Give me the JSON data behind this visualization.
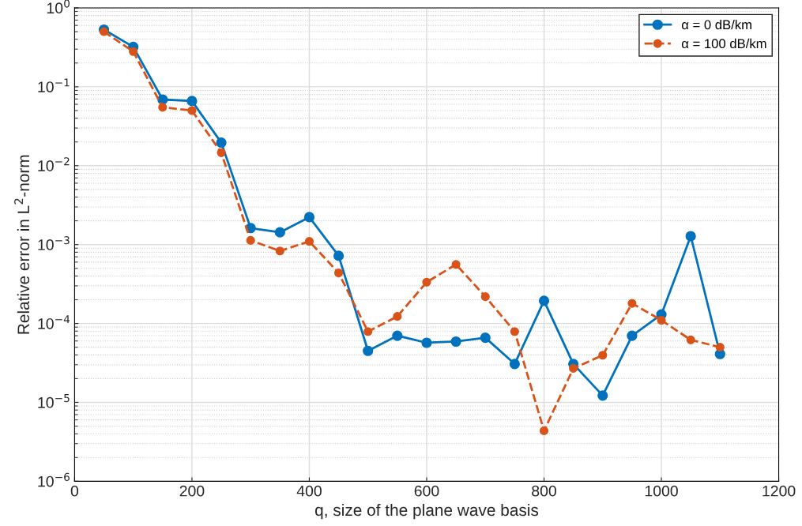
{
  "chart_data": {
    "type": "line",
    "xlabel": "q, size of the plane wave basis",
    "ylabel": "Relative error in L$^{2}$-norm",
    "x": [
      50,
      100,
      150,
      200,
      250,
      300,
      350,
      400,
      450,
      500,
      550,
      600,
      650,
      700,
      750,
      800,
      850,
      900,
      950,
      1000,
      1050,
      1100
    ],
    "series": [
      {
        "name": "α = 0 dB/km",
        "color": "#0072bd",
        "line_style": "solid",
        "values": [
          0.53,
          0.32,
          0.069,
          0.066,
          0.0196,
          0.00162,
          0.00143,
          0.00223,
          0.00072,
          4.5e-05,
          7e-05,
          5.7e-05,
          5.9e-05,
          6.6e-05,
          3.07e-05,
          0.000194,
          3.07e-05,
          1.22e-05,
          7e-05,
          0.00013,
          0.00128,
          4.1e-05
        ]
      },
      {
        "name": "α = 100 dB/km",
        "color": "#d95319",
        "line_style": "dashed",
        "values": [
          0.5,
          0.28,
          0.055,
          0.05,
          0.0146,
          0.00113,
          0.00083,
          0.0011,
          0.000437,
          7.9e-05,
          0.000123,
          0.000334,
          0.00056,
          0.000219,
          7.9e-05,
          4.37e-06,
          2.7e-05,
          3.96e-05,
          0.00018,
          0.00011,
          6.2e-05,
          5e-05
        ]
      }
    ],
    "log": "y",
    "xlim": [
      0,
      1200
    ],
    "xticks": [
      0,
      200,
      400,
      600,
      800,
      1000,
      1200
    ],
    "ylim": [
      1e-06,
      1
    ],
    "yticks": [
      {
        "value": 1e-06,
        "label": "10$^{−6}$"
      },
      {
        "value": 1e-05,
        "label": "10$^{−5}$"
      },
      {
        "value": 0.0001,
        "label": "10$^{−4}$"
      },
      {
        "value": 0.001,
        "label": "10$^{−3}$"
      },
      {
        "value": 0.01,
        "label": "10$^{−2}$"
      },
      {
        "value": 0.1,
        "label": "10$^{−1}$"
      },
      {
        "value": 1,
        "label": "10$^{0}$"
      }
    ],
    "grid": true,
    "legend": "top right",
    "marker": "circle"
  }
}
